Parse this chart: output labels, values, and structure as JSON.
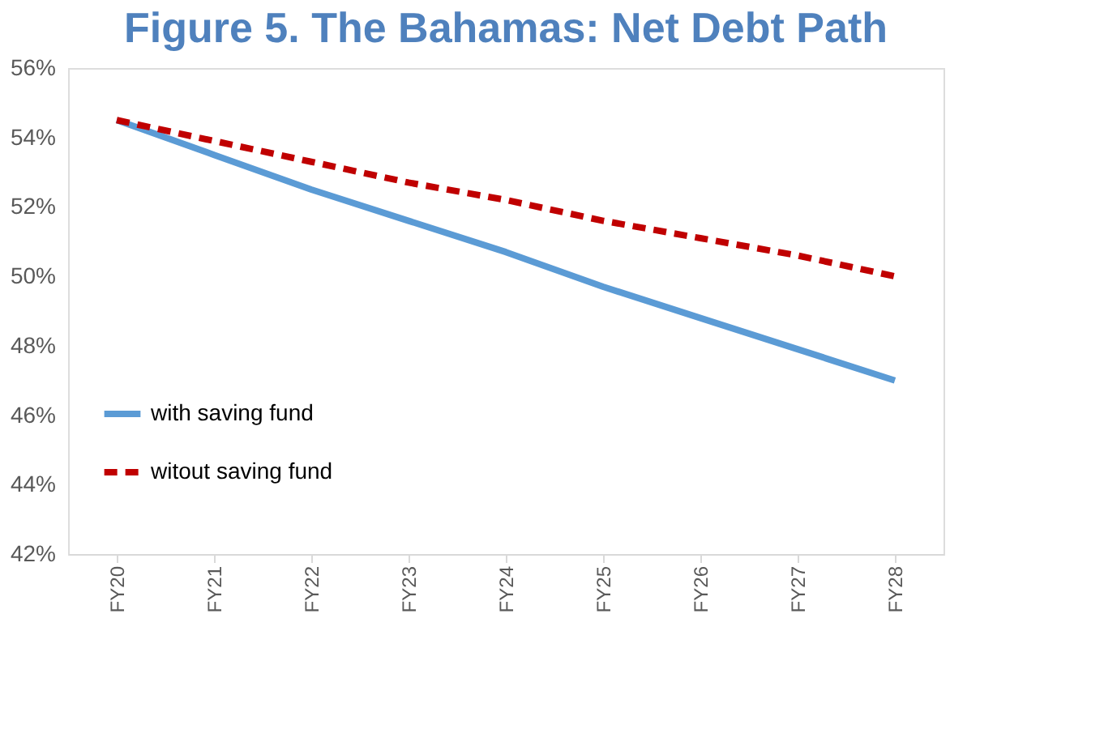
{
  "chart_data": {
    "type": "line",
    "title": "Figure 5. The Bahamas: Net Debt Path",
    "categories": [
      "FY20",
      "FY21",
      "FY22",
      "FY23",
      "FY24",
      "FY25",
      "FY26",
      "FY27",
      "FY28"
    ],
    "series": [
      {
        "name": "with saving fund",
        "color": "#5b9bd5",
        "line_style": "solid",
        "values": [
          54.5,
          53.5,
          52.5,
          51.6,
          50.7,
          49.7,
          48.8,
          47.9,
          47.0
        ]
      },
      {
        "name": "witout saving fund",
        "color": "#c00000",
        "line_style": "dashed",
        "values": [
          54.5,
          53.9,
          53.3,
          52.7,
          52.2,
          51.6,
          51.1,
          50.6,
          50.0
        ]
      }
    ],
    "ylim": [
      42,
      56
    ],
    "yticks": [
      {
        "value": 42,
        "label": "42%"
      },
      {
        "value": 44,
        "label": "44%"
      },
      {
        "value": 46,
        "label": "46%"
      },
      {
        "value": 48,
        "label": "48%"
      },
      {
        "value": 50,
        "label": "50%"
      },
      {
        "value": 52,
        "label": "52%"
      },
      {
        "value": 54,
        "label": "54%"
      },
      {
        "value": 56,
        "label": "56%"
      }
    ],
    "grid": false,
    "legend": "left",
    "marker": "none"
  }
}
